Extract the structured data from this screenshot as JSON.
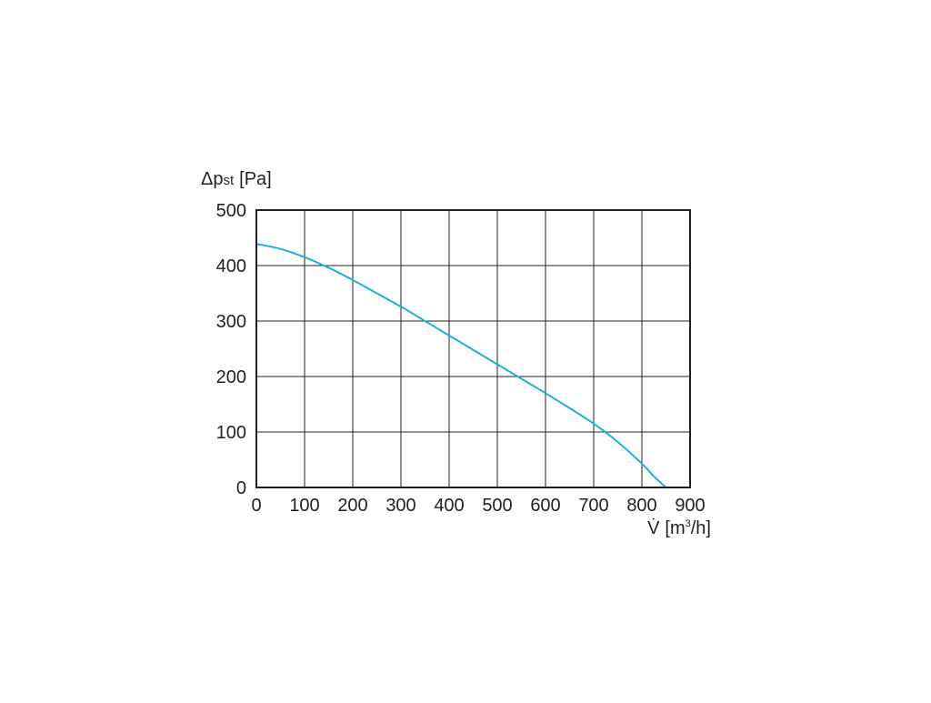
{
  "chart_data": {
    "type": "line",
    "title": "",
    "ylabel": {
      "symbol": "Δp",
      "subscript": "st",
      "unit": "[Pa]"
    },
    "xlabel": {
      "symbol": "V̇",
      "unit_prefix": "[m",
      "unit_sup": "3",
      "unit_suffix": "/h]"
    },
    "xlim": [
      0,
      900
    ],
    "ylim": [
      0,
      500
    ],
    "x_ticks": [
      0,
      100,
      200,
      300,
      400,
      500,
      600,
      700,
      800,
      900
    ],
    "y_ticks": [
      0,
      100,
      200,
      300,
      400,
      500
    ],
    "grid": true,
    "series": [
      {
        "color": "#1ab0de",
        "points": [
          [
            0,
            439
          ],
          [
            50,
            430
          ],
          [
            100,
            415
          ],
          [
            150,
            396
          ],
          [
            200,
            374
          ],
          [
            250,
            350
          ],
          [
            300,
            326
          ],
          [
            350,
            300
          ],
          [
            400,
            274
          ],
          [
            450,
            248
          ],
          [
            500,
            222
          ],
          [
            550,
            196
          ],
          [
            600,
            170
          ],
          [
            650,
            143
          ],
          [
            700,
            115
          ],
          [
            750,
            82
          ],
          [
            800,
            43
          ],
          [
            825,
            20
          ],
          [
            850,
            0
          ]
        ]
      }
    ]
  }
}
